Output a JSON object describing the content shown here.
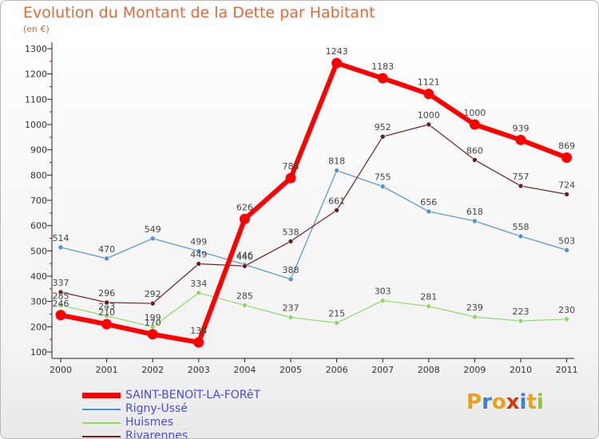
{
  "title": "Evolution du Montant de la Dette par Habitant",
  "subtitle": "(en €)",
  "logo": {
    "text": "Proxiti",
    "letter_colors": [
      "#e8a31c",
      "#3a7fd5",
      "#e8a31c",
      "#d4380d",
      "#3a7fd5",
      "#e8a31c",
      "#8cc63f"
    ]
  },
  "chart_data": {
    "type": "line",
    "title": "Evolution du Montant de la Dette par Habitant",
    "subtitle": "(en €)",
    "x": [
      "2000",
      "2001",
      "2002",
      "2003",
      "2004",
      "2005",
      "2006",
      "2007",
      "2008",
      "2009",
      "2010",
      "2011"
    ],
    "y_ticks": [
      100,
      200,
      300,
      400,
      500,
      600,
      700,
      800,
      900,
      1000,
      1100,
      1200,
      1300
    ],
    "ylim": [
      100,
      1300
    ],
    "grid": false,
    "legend_position": "bottom-left",
    "series": [
      {
        "name": "Rigny-Ussé",
        "color": "#4f92d0",
        "values": [
          514,
          470,
          549,
          499,
          446,
          388,
          818,
          755,
          656,
          618,
          558,
          503
        ],
        "labels": [
          "514",
          "470",
          "549",
          "499",
          "446",
          "388",
          "818",
          "755",
          "656",
          "618",
          "558",
          "503"
        ]
      },
      {
        "name": "Huismes",
        "color": "#8ed86a",
        "values": [
          285,
          243,
          199,
          334,
          285,
          237,
          215,
          303,
          281,
          239,
          223,
          230
        ],
        "labels": [
          "285",
          "243",
          "199",
          "334",
          "285",
          "237",
          "215",
          "303",
          "281",
          "239",
          "223",
          "230"
        ]
      },
      {
        "name": "Rivarennes",
        "color": "#6b1f1f",
        "values": [
          337,
          296,
          292,
          449,
          440,
          538,
          661,
          952,
          1000,
          860,
          757,
          724
        ],
        "labels": [
          "337",
          "296",
          "292",
          "449",
          "440",
          "538",
          "661",
          "952",
          "1000",
          "860",
          "757",
          "724"
        ]
      },
      {
        "name": "SAINT-BENOîT-LA-FORêT",
        "color": "#ff0000",
        "values": [
          246,
          210,
          170,
          138,
          626,
          788,
          1243,
          1183,
          1121,
          1000,
          939,
          869
        ],
        "labels": [
          "246",
          "210",
          "170",
          "138",
          "626",
          "788",
          "1243",
          "1183",
          "1121",
          "1000",
          "939",
          "869"
        ]
      }
    ],
    "legend": [
      "SAINT-BENOîT-LA-FORêT",
      "Rigny-Ussé",
      "Huismes",
      "Rivarennes"
    ]
  }
}
